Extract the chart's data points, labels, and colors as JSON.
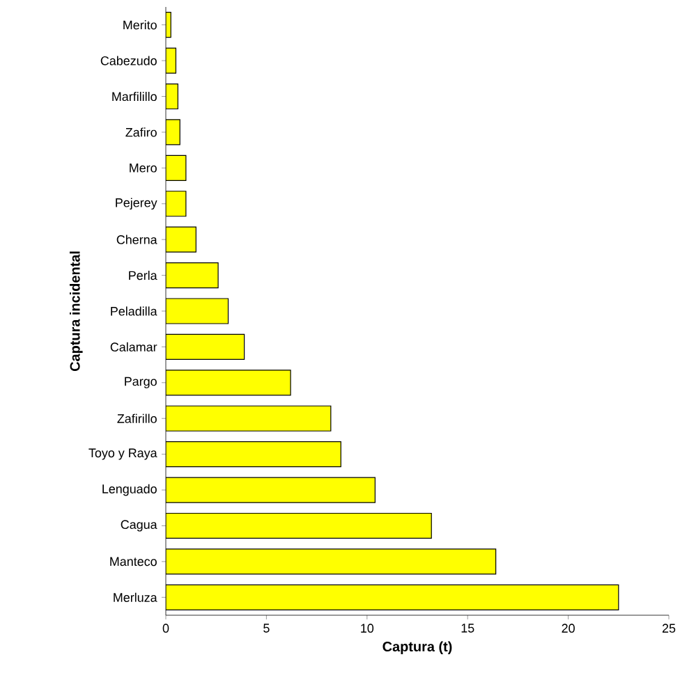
{
  "chart_data": {
    "type": "bar",
    "orientation": "horizontal",
    "xlabel": "Captura (t)",
    "ylabel": "Captura incidental",
    "categories": [
      "Merito",
      "Cabezudo",
      "Marfilillo",
      "Zafiro",
      "Mero",
      "Pejerey",
      "Cherna",
      "Perla",
      "Peladilla",
      "Calamar",
      "Pargo",
      "Zafirillo",
      "Toyo y Raya",
      "Lenguado",
      "Cagua",
      "Manteco",
      "Merluza"
    ],
    "values": [
      0.25,
      0.5,
      0.6,
      0.7,
      1.0,
      1.0,
      1.5,
      2.6,
      3.1,
      3.9,
      6.2,
      8.2,
      8.7,
      10.4,
      13.2,
      16.4,
      22.5
    ],
    "color": "#ffff00",
    "xlim": [
      0,
      25
    ],
    "xticks": [
      0,
      5,
      10,
      15,
      20,
      25
    ],
    "grid": false
  }
}
